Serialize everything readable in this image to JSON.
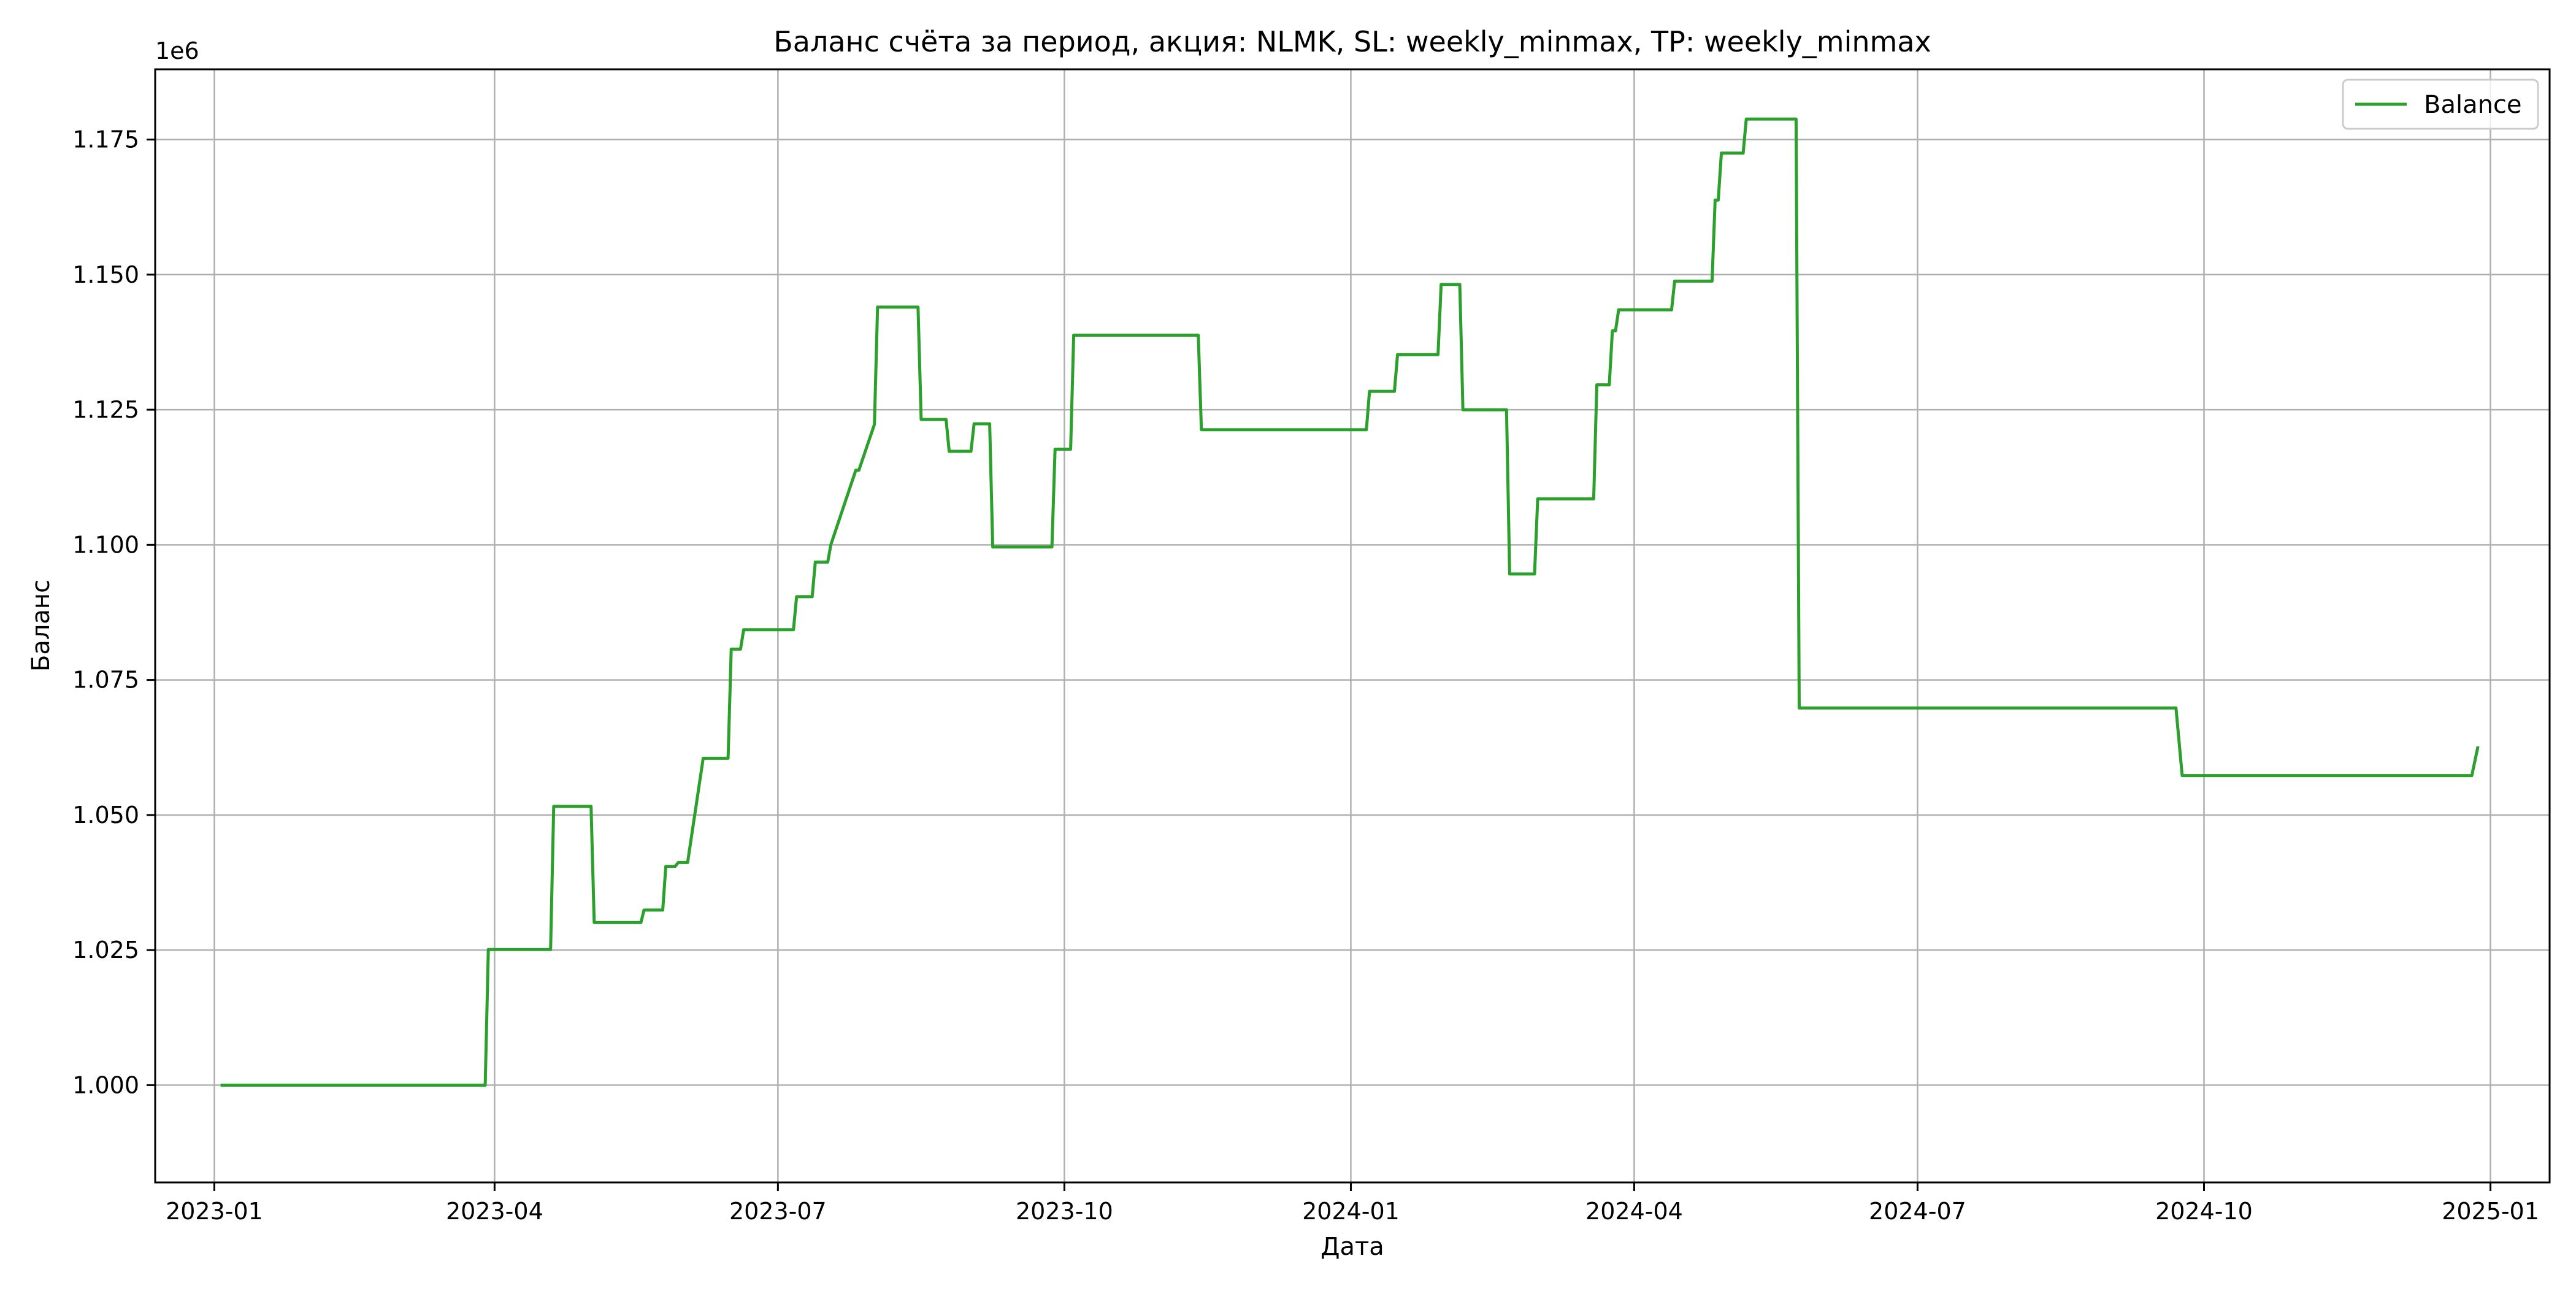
{
  "chart_data": {
    "type": "line",
    "title": "Баланс счёта за период, акция: NLMK, SL: weekly_minmax, TP: weekly_minmax",
    "xlabel": "Дата",
    "ylabel": "Баланс",
    "y_offset_label": "1e6",
    "x_scale": "date",
    "xlim": [
      "2022-12-13",
      "2025-01-20"
    ],
    "ylim": [
      982000,
      1188000
    ],
    "x_ticks": [
      "2023-01",
      "2023-04",
      "2023-07",
      "2023-10",
      "2024-01",
      "2024-04",
      "2024-07",
      "2024-10",
      "2025-01"
    ],
    "y_ticks": [
      {
        "value": 1000000,
        "label": "1.000"
      },
      {
        "value": 1025000,
        "label": "1.025"
      },
      {
        "value": 1050000,
        "label": "1.050"
      },
      {
        "value": 1075000,
        "label": "1.075"
      },
      {
        "value": 1100000,
        "label": "1.100"
      },
      {
        "value": 1125000,
        "label": "1.125"
      },
      {
        "value": 1150000,
        "label": "1.150"
      },
      {
        "value": 1175000,
        "label": "1.175"
      }
    ],
    "grid": true,
    "legend_position": "top-right",
    "series": [
      {
        "name": "Balance",
        "color": "#2ca02c",
        "x": [
          "2023-01-03",
          "2023-03-29",
          "2023-03-30",
          "2023-04-19",
          "2023-04-20",
          "2023-05-02",
          "2023-05-03",
          "2023-05-18",
          "2023-05-19",
          "2023-05-25",
          "2023-05-26",
          "2023-05-29",
          "2023-05-30",
          "2023-06-01",
          "2023-06-02",
          "2023-06-07",
          "2023-06-08",
          "2023-06-15",
          "2023-06-16",
          "2023-06-19",
          "2023-06-20",
          "2023-07-02",
          "2023-07-03",
          "2023-07-06",
          "2023-07-07",
          "2023-07-12",
          "2023-07-13",
          "2023-07-17",
          "2023-07-18",
          "2023-07-26",
          "2023-07-27",
          "2023-08-01",
          "2023-08-02",
          "2023-08-15",
          "2023-08-16",
          "2023-08-24",
          "2023-08-25",
          "2023-09-01",
          "2023-09-02",
          "2023-09-07",
          "2023-09-08",
          "2023-09-27",
          "2023-09-28",
          "2023-10-03",
          "2023-10-04",
          "2023-11-13",
          "2023-11-14",
          "2024-01-06",
          "2024-01-07",
          "2024-01-15",
          "2024-01-16",
          "2024-01-29",
          "2024-01-30",
          "2024-02-05",
          "2024-02-06",
          "2024-02-20",
          "2024-02-21",
          "2024-02-29",
          "2024-03-01",
          "2024-03-19",
          "2024-03-20",
          "2024-03-24",
          "2024-03-25",
          "2024-03-26",
          "2024-03-27",
          "2024-04-13",
          "2024-04-14",
          "2024-04-26",
          "2024-04-27",
          "2024-04-28",
          "2024-04-29",
          "2024-04-30",
          "2024-05-01",
          "2024-05-06",
          "2024-05-07",
          "2024-05-23",
          "2024-05-24",
          "2024-09-22",
          "2024-09-24",
          "2024-12-26",
          "2024-12-28"
        ],
        "values": [
          1000000,
          1000000,
          1025100,
          1025100,
          1051600,
          1051600,
          1030100,
          1030100,
          1032400,
          1032400,
          1040500,
          1040500,
          1041200,
          1041200,
          1041200,
          1060500,
          1060500,
          1060500,
          1080700,
          1080700,
          1084300,
          1084300,
          1084300,
          1084300,
          1090400,
          1090400,
          1096800,
          1096800,
          1100000,
          1113800,
          1113800,
          1122300,
          1144000,
          1144000,
          1123200,
          1123200,
          1117300,
          1117300,
          1122400,
          1122400,
          1099600,
          1099600,
          1117700,
          1117700,
          1138800,
          1138800,
          1121300,
          1121300,
          1128400,
          1128400,
          1135200,
          1135200,
          1148200,
          1148200,
          1125000,
          1125000,
          1094600,
          1094600,
          1108500,
          1108500,
          1129600,
          1129600,
          1139600,
          1139600,
          1143500,
          1143500,
          1148800,
          1148800,
          1163800,
          1163800,
          1172500,
          1172500,
          1172500,
          1172500,
          1178800,
          1178800,
          1069800,
          1069800,
          1057300,
          1057300,
          1062700
        ]
      }
    ]
  }
}
